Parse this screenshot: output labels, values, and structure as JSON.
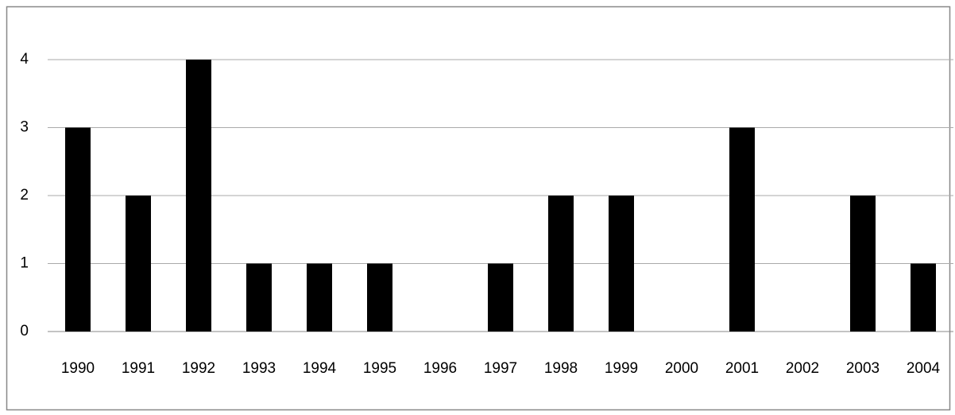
{
  "chart_data": {
    "type": "bar",
    "categories": [
      "1990",
      "1991",
      "1992",
      "1993",
      "1994",
      "1995",
      "1996",
      "1997",
      "1998",
      "1999",
      "2000",
      "2001",
      "2002",
      "2003",
      "2004"
    ],
    "values": [
      3,
      2,
      4,
      1,
      1,
      1,
      0,
      1,
      2,
      2,
      0,
      3,
      0,
      2,
      1
    ],
    "color": "#000000",
    "ylim": [
      0,
      4.5
    ],
    "yticks": [
      0,
      1,
      2,
      3,
      4
    ],
    "grid": true
  }
}
